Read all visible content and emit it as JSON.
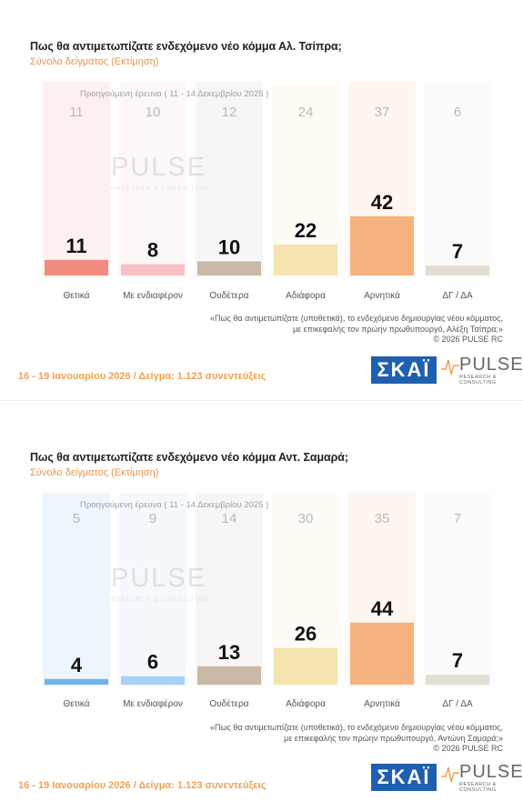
{
  "panels": [
    {
      "title": "Πως θα αντιμετωπίζατε ενδεχόμενο νέο κόμμα Αλ. Τσίπρα;",
      "subtitle": "Σύνολο δείγματος  (Εκτίμηση)",
      "prev_label": "Προηγούμενη έρευνα ( 11 - 14 Δεκεμβρίου 2025 )",
      "footnote": [
        "«Πως θα αντιμετωπίζατε (υποθετικά), το ενδεχόμενο δημιουργίας νέου κόμματος,",
        "με επικεφαλής τον πρώην πρωθυπουργό, Αλέξη Τσίπρα;»",
        "©  2026  PULSE RC"
      ],
      "footer": "16 - 19 Ιανουαρίου 2026  /  Δείγμα:  1.123 συνεντεύξεις"
    },
    {
      "title": "Πως θα αντιμετωπίζατε ενδεχόμενο νέο κόμμα Αντ. Σαμαρά;",
      "subtitle": "Σύνολο δείγματος  (Εκτίμηση)",
      "prev_label": "Προηγούμενη έρευνα ( 11 - 14 Δεκεμβρίου 2025 )",
      "footnote": [
        "«Πως θα αντιμετωπίζατε (υποθετικά), το ενδεχόμενο δημιουργίας νέου κόμματος,",
        "με επικεφαλής τον πρώην πρωθυπουργό, Αντώνη Σαμαρά;»",
        "©  2026  PULSE RC"
      ],
      "footer": "16 - 19 Ιανουαρίου 2026  /  Δείγμα:  1.123 συνεντεύξεις"
    }
  ],
  "logos": {
    "skai": "ΣΚΑΪ",
    "pulse": "PULSE",
    "pulse_sub": "RESEARCH & CONSULTING",
    "watermark": "PULSE",
    "watermark_sub": "RESEARCH & CONSULTING"
  },
  "chart_data": [
    {
      "type": "bar",
      "categories": [
        "Θετικά",
        "Με ενδιαφέρον",
        "Ουδέτερα",
        "Αδιάφορα",
        "Αρνητικά",
        "ΔΓ / ΔΑ"
      ],
      "series": [
        {
          "name": "",
          "values": [
            11,
            8,
            10,
            22,
            42,
            7
          ]
        },
        {
          "name": "Προηγούμενη έρευνα ( 11 - 14 Δεκεμβρίου 2025 )",
          "values": [
            11,
            10,
            12,
            24,
            37,
            6
          ]
        }
      ],
      "colors": [
        "#f28a80",
        "#f9c0c4",
        "#c9b8a8",
        "#f6e4b0",
        "#f5b27e",
        "#e4ddd2"
      ],
      "ylim": [
        0,
        50
      ]
    },
    {
      "type": "bar",
      "categories": [
        "Θετικά",
        "Με ενδιαφέρον",
        "Ουδέτερα",
        "Αδιάφορα",
        "Αρνητικά",
        "ΔΓ / ΔΑ"
      ],
      "series": [
        {
          "name": "",
          "values": [
            4,
            6,
            13,
            26,
            44,
            7
          ]
        },
        {
          "name": "Προηγούμενη έρευνα ( 11 - 14 Δεκεμβρίου 2025 )",
          "values": [
            5,
            9,
            14,
            30,
            35,
            7
          ]
        }
      ],
      "colors": [
        "#6fb2ea",
        "#a9d1f3",
        "#c9b8a8",
        "#f6e4b0",
        "#f5b27e",
        "#e4ddd2"
      ],
      "ylim": [
        0,
        50
      ]
    }
  ]
}
